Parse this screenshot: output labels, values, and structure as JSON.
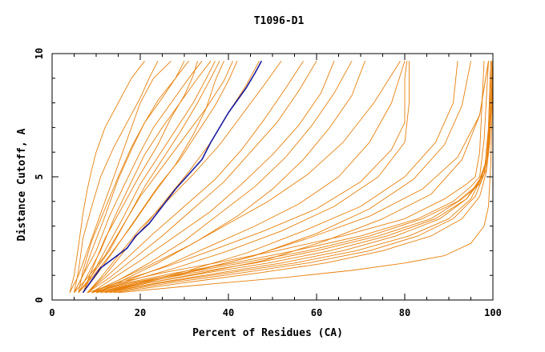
{
  "chart_data": {
    "type": "line",
    "title": "T1096-D1",
    "xlabel": "Percent of Residues (CA)",
    "ylabel": "Distance Cutoff, A",
    "xlim": [
      0,
      100
    ],
    "ylim": [
      0,
      10
    ],
    "x_ticks": [
      0,
      20,
      40,
      60,
      80,
      100
    ],
    "y_ticks": [
      0,
      5,
      10
    ],
    "grid": false,
    "colors": {
      "models": "#e8800a",
      "highlight": "#1a1aa0"
    },
    "highlight_series": {
      "x": [
        7,
        9,
        11,
        14,
        17,
        19,
        22,
        25,
        28,
        31,
        34,
        36,
        38,
        40,
        42,
        44,
        46,
        47.5
      ],
      "y": [
        0.3,
        0.8,
        1.3,
        1.7,
        2.1,
        2.6,
        3.1,
        3.8,
        4.5,
        5.1,
        5.7,
        6.4,
        7.0,
        7.6,
        8.1,
        8.6,
        9.2,
        9.7
      ]
    },
    "series": [
      {
        "x": [
          4,
          6,
          8,
          11,
          14,
          16,
          18,
          20,
          23,
          27
        ],
        "y": [
          0.3,
          1.0,
          2.0,
          3.5,
          5.0,
          6.0,
          7.0,
          8.0,
          9.0,
          9.7
        ]
      },
      {
        "x": [
          5,
          7,
          9,
          12,
          15,
          18,
          21,
          24,
          28,
          31
        ],
        "y": [
          0.3,
          1.0,
          2.0,
          3.4,
          4.9,
          6.1,
          7.2,
          8.1,
          9.0,
          9.7
        ]
      },
      {
        "x": [
          5,
          7,
          10,
          13,
          17,
          20,
          23,
          27,
          31,
          34
        ],
        "y": [
          0.3,
          1.0,
          2.0,
          3.4,
          4.9,
          6.0,
          7.0,
          8.0,
          9.0,
          9.7
        ]
      },
      {
        "x": [
          6,
          8,
          11,
          14,
          18,
          21,
          25,
          29,
          33,
          36
        ],
        "y": [
          0.3,
          1.0,
          2.0,
          3.3,
          4.8,
          5.9,
          7.0,
          8.0,
          9.0,
          9.7
        ]
      },
      {
        "x": [
          6,
          9,
          12,
          16,
          20,
          24,
          28,
          32,
          35,
          37
        ],
        "y": [
          0.3,
          1.0,
          2.0,
          3.3,
          4.7,
          5.8,
          6.9,
          8.0,
          9.0,
          9.7
        ]
      },
      {
        "x": [
          7,
          9,
          13,
          17,
          21,
          25,
          29,
          33,
          36,
          38
        ],
        "y": [
          0.3,
          1.0,
          2.0,
          3.3,
          4.6,
          5.7,
          6.8,
          8.0,
          9.0,
          9.7
        ]
      },
      {
        "x": [
          7,
          10,
          14,
          19,
          24,
          29,
          33,
          37,
          40,
          42
        ],
        "y": [
          0.3,
          1.0,
          2.0,
          3.3,
          4.6,
          5.7,
          6.8,
          7.9,
          8.9,
          9.7
        ]
      },
      {
        "x": [
          6,
          9,
          13,
          18,
          23,
          28,
          32,
          35,
          37,
          39
        ],
        "y": [
          0.3,
          0.9,
          1.8,
          3.0,
          4.3,
          5.5,
          6.7,
          7.8,
          8.9,
          9.7
        ]
      },
      {
        "x": [
          5,
          8,
          12,
          16,
          20,
          25,
          30,
          35,
          39,
          41
        ],
        "y": [
          0.3,
          0.9,
          1.8,
          3.0,
          4.2,
          5.4,
          6.6,
          7.8,
          8.9,
          9.7
        ]
      },
      {
        "x": [
          8,
          12,
          16,
          21,
          26,
          31,
          36,
          40,
          44,
          47
        ],
        "y": [
          0.3,
          1.0,
          1.9,
          3.0,
          4.1,
          5.2,
          6.4,
          7.6,
          8.7,
          9.7
        ]
      },
      {
        "x": [
          8,
          11,
          15,
          20,
          26,
          32,
          38,
          43,
          48,
          52
        ],
        "y": [
          0.3,
          0.9,
          1.8,
          2.9,
          4.0,
          5.1,
          6.3,
          7.5,
          8.7,
          9.7
        ]
      },
      {
        "x": [
          8,
          12,
          17,
          23,
          30,
          37,
          43,
          48,
          53,
          57
        ],
        "y": [
          0.3,
          0.9,
          1.7,
          2.7,
          3.8,
          4.9,
          6.1,
          7.3,
          8.6,
          9.7
        ]
      },
      {
        "x": [
          8,
          13,
          18,
          25,
          32,
          39,
          45,
          51,
          56,
          60
        ],
        "y": [
          0.3,
          0.9,
          1.6,
          2.6,
          3.7,
          4.8,
          6.0,
          7.2,
          8.5,
          9.7
        ]
      },
      {
        "x": [
          9,
          14,
          20,
          28,
          36,
          43,
          50,
          56,
          61,
          64
        ],
        "y": [
          0.3,
          0.9,
          1.6,
          2.6,
          3.6,
          4.7,
          5.9,
          7.1,
          8.4,
          9.7
        ]
      },
      {
        "x": [
          9,
          15,
          22,
          30,
          38,
          46,
          53,
          59,
          64,
          68
        ],
        "y": [
          0.3,
          0.8,
          1.5,
          2.4,
          3.5,
          4.6,
          5.8,
          7.1,
          8.4,
          9.7
        ]
      },
      {
        "x": [
          10,
          16,
          24,
          33,
          42,
          50,
          57,
          63,
          68,
          71
        ],
        "y": [
          0.3,
          0.8,
          1.5,
          2.4,
          3.4,
          4.5,
          5.7,
          7.0,
          8.3,
          9.7
        ]
      },
      {
        "x": [
          9,
          15,
          22,
          31,
          40,
          49,
          58,
          66,
          73,
          79
        ],
        "y": [
          0.3,
          0.8,
          1.4,
          2.2,
          3.1,
          4.0,
          5.1,
          6.4,
          8.0,
          9.7
        ]
      },
      {
        "x": [
          10,
          17,
          26,
          36,
          46,
          56,
          65,
          72,
          77,
          80
        ],
        "y": [
          0.3,
          0.8,
          1.4,
          2.2,
          3.0,
          3.9,
          5.0,
          6.4,
          8.0,
          9.7
        ]
      },
      {
        "x": [
          9,
          16,
          25,
          36,
          48,
          60,
          70,
          77,
          80,
          80,
          80,
          80.5
        ],
        "y": [
          0.3,
          0.8,
          1.3,
          2.0,
          2.8,
          3.7,
          4.8,
          6.1,
          7.2,
          8.0,
          9.0,
          9.7
        ]
      },
      {
        "x": [
          10,
          18,
          28,
          40,
          52,
          64,
          74,
          80,
          81,
          81
        ],
        "y": [
          0.3,
          0.8,
          1.3,
          2.0,
          2.8,
          3.8,
          5.0,
          6.4,
          8.0,
          9.7
        ]
      },
      {
        "x": [
          11,
          20,
          31,
          44,
          57,
          70,
          80,
          87,
          91,
          92
        ],
        "y": [
          0.3,
          0.7,
          1.2,
          1.9,
          2.8,
          3.8,
          5.0,
          6.4,
          8.0,
          9.7
        ]
      },
      {
        "x": [
          11,
          21,
          33,
          46,
          60,
          72,
          82,
          89,
          93,
          95
        ],
        "y": [
          0.3,
          0.7,
          1.2,
          1.8,
          2.7,
          3.7,
          4.9,
          6.3,
          7.9,
          9.7
        ]
      },
      {
        "x": [
          10,
          19,
          30,
          44,
          58,
          72,
          84,
          92,
          97,
          99
        ],
        "y": [
          0.3,
          0.7,
          1.1,
          1.7,
          2.5,
          3.4,
          4.5,
          5.8,
          7.5,
          9.7
        ]
      },
      {
        "x": [
          12,
          22,
          34,
          48,
          62,
          75,
          86,
          93,
          97,
          99
        ],
        "y": [
          0.3,
          0.7,
          1.1,
          1.6,
          2.4,
          3.3,
          4.3,
          5.7,
          7.5,
          9.7
        ]
      },
      {
        "x": [
          8,
          15,
          25,
          37,
          51,
          66,
          80,
          89,
          94,
          96,
          97,
          98
        ],
        "y": [
          0.3,
          0.7,
          1.1,
          1.5,
          2.0,
          2.6,
          3.3,
          4.1,
          4.7,
          5.0,
          6.0,
          9.7
        ]
      },
      {
        "x": [
          9,
          17,
          28,
          41,
          55,
          70,
          83,
          91,
          95,
          97,
          98,
          99
        ],
        "y": [
          0.3,
          0.7,
          1.1,
          1.5,
          2.0,
          2.6,
          3.3,
          4.0,
          4.6,
          5.0,
          6.5,
          9.7
        ]
      },
      {
        "x": [
          9,
          18,
          30,
          43,
          58,
          72,
          84,
          92,
          96,
          98,
          99,
          99.5
        ],
        "y": [
          0.3,
          0.7,
          1.1,
          1.5,
          2.0,
          2.6,
          3.3,
          4.0,
          4.6,
          5.1,
          7.0,
          9.7
        ]
      },
      {
        "x": [
          10,
          20,
          32,
          46,
          60,
          74,
          86,
          93,
          97,
          98.5,
          99,
          99.5
        ],
        "y": [
          0.3,
          0.7,
          1.1,
          1.5,
          2.0,
          2.6,
          3.3,
          4.1,
          4.7,
          5.3,
          7.0,
          9.7
        ]
      },
      {
        "x": [
          11,
          22,
          35,
          49,
          63,
          76,
          87,
          94,
          97,
          98.5,
          99.2,
          99.8
        ],
        "y": [
          0.3,
          0.7,
          1.1,
          1.5,
          2.0,
          2.6,
          3.3,
          4.1,
          4.8,
          5.6,
          7.2,
          9.7
        ]
      },
      {
        "x": [
          12,
          24,
          38,
          52,
          66,
          78,
          88,
          94,
          97,
          98.8,
          99.3,
          99.8
        ],
        "y": [
          0.3,
          0.7,
          1.1,
          1.5,
          2.0,
          2.6,
          3.3,
          4.1,
          4.9,
          5.8,
          7.5,
          9.7
        ]
      },
      {
        "x": [
          12,
          25,
          40,
          55,
          69,
          81,
          90,
          95,
          97.5,
          99,
          99.5,
          100
        ],
        "y": [
          0.3,
          0.7,
          1.1,
          1.5,
          2.0,
          2.6,
          3.3,
          4.1,
          5.0,
          6.0,
          7.6,
          9.7
        ]
      },
      {
        "x": [
          13,
          27,
          43,
          58,
          72,
          83,
          91,
          96,
          98,
          99,
          99.6,
          100
        ],
        "y": [
          0.3,
          0.7,
          1.1,
          1.5,
          2.0,
          2.6,
          3.3,
          4.2,
          5.1,
          6.2,
          7.8,
          9.7
        ]
      },
      {
        "x": [
          14,
          30,
          47,
          62,
          75,
          86,
          93,
          97,
          98.5,
          99.3,
          99.7,
          100
        ],
        "y": [
          0.3,
          0.7,
          1.1,
          1.5,
          2.0,
          2.6,
          3.3,
          4.2,
          5.2,
          6.4,
          8.0,
          9.7
        ]
      },
      {
        "x": [
          15,
          33,
          52,
          68,
          80,
          89,
          95,
          98,
          99,
          99.5,
          99.8,
          100
        ],
        "y": [
          0.3,
          0.6,
          0.9,
          1.2,
          1.5,
          1.8,
          2.3,
          3.0,
          3.8,
          5.5,
          7.5,
          9.7
        ]
      },
      {
        "x": [
          4,
          5,
          6,
          7,
          8,
          9,
          10,
          12,
          15,
          18,
          21
        ],
        "y": [
          0.3,
          1.0,
          2.2,
          3.5,
          4.5,
          5.3,
          6.0,
          7.0,
          8.0,
          9.0,
          9.7
        ]
      },
      {
        "x": [
          5,
          6,
          7,
          9,
          11,
          14,
          17,
          20,
          22,
          24
        ],
        "y": [
          0.3,
          1.2,
          2.5,
          3.8,
          5.0,
          6.2,
          7.2,
          8.2,
          9.0,
          9.7
        ]
      },
      {
        "x": [
          6,
          7,
          9,
          12,
          15,
          18,
          21,
          25,
          28,
          30
        ],
        "y": [
          0.3,
          1.2,
          2.4,
          3.7,
          5.0,
          6.2,
          7.2,
          8.2,
          9.0,
          9.7
        ]
      },
      {
        "x": [
          7,
          9,
          12,
          16,
          20,
          24,
          27,
          30,
          32,
          33
        ],
        "y": [
          0.3,
          1.2,
          2.5,
          3.8,
          5.1,
          6.3,
          7.4,
          8.3,
          9.1,
          9.7
        ]
      }
    ]
  }
}
